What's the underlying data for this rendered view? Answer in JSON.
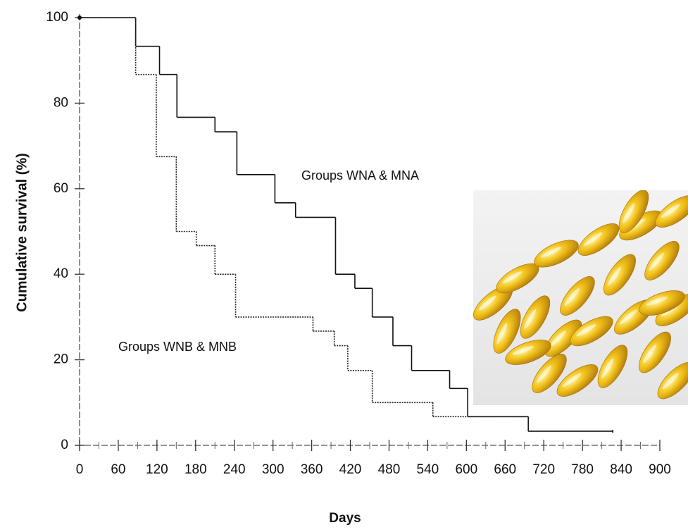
{
  "chart_data": {
    "type": "line",
    "step": "post",
    "x_label": "Days",
    "y_label": "Cumulative survival (%)",
    "xlim": [
      0,
      900
    ],
    "ylim": [
      0,
      100
    ],
    "xticks": [
      0,
      60,
      120,
      180,
      240,
      300,
      360,
      420,
      480,
      540,
      600,
      660,
      720,
      780,
      840,
      900
    ],
    "yticks": [
      0,
      20,
      40,
      60,
      80,
      100
    ],
    "series": [
      {
        "name": "Groups WNA & MNA",
        "color": "#111111",
        "dash": "solid",
        "x": [
          0,
          87,
          124,
          151,
          210,
          244,
          303,
          335,
          397,
          427,
          454,
          486,
          515,
          574,
          602,
          696,
          827
        ],
        "values": [
          100,
          93.3,
          86.7,
          76.7,
          73.3,
          63.3,
          56.7,
          53.3,
          40,
          36.7,
          30,
          23.3,
          17.5,
          13.3,
          6.7,
          3.3,
          3.3
        ]
      },
      {
        "name": "Groups WNB & MNB",
        "color": "#222222",
        "dash": "dotted",
        "x": [
          0,
          87,
          119,
          150,
          181,
          210,
          242,
          362,
          395,
          416,
          454,
          548,
          696,
          827
        ],
        "values": [
          100,
          86.7,
          67.5,
          50,
          46.7,
          40,
          30,
          26.7,
          23.3,
          17.5,
          10,
          6.7,
          3.3,
          3.3
        ]
      }
    ]
  }
}
